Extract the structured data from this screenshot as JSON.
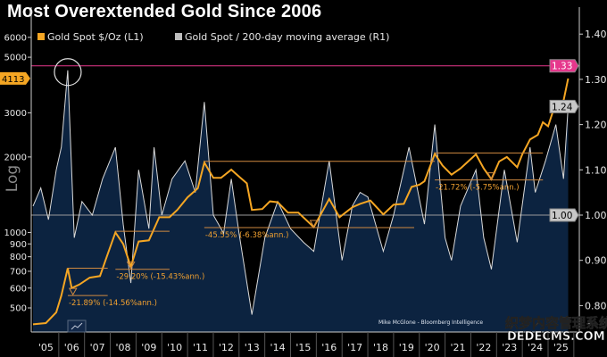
{
  "title": "Most Overextended Gold Since 2006",
  "source": "Mike McGlone - Bloomberg Intelligence",
  "watermark": [
    "织梦内容管理系统",
    "DEDECMS.COM"
  ],
  "chart_data": {
    "type": "line",
    "title": "Most Overextended Gold Since 2006",
    "legend_position": "top-left",
    "x_ticks": [
      "'05",
      "'06",
      "'07",
      "'08",
      "'09",
      "'10",
      "'11",
      "'12",
      "'13",
      "'14",
      "'15",
      "'16",
      "'17",
      "'18",
      "'19",
      "'20",
      "'21",
      "'22",
      "'23",
      "'24",
      "'25"
    ],
    "left_axis": {
      "label": "Log",
      "scale": "log",
      "range": [
        400,
        6500
      ],
      "ticks": [
        500,
        600,
        700,
        800,
        900,
        1000,
        2000,
        3000,
        5000,
        6000
      ],
      "last_value_label": "4113",
      "color": "#f5a623"
    },
    "right_axis": {
      "scale": "linear",
      "range": [
        0.745,
        1.43
      ],
      "ticks": [
        "0.80",
        "0.90",
        "1.00",
        "1.10",
        "1.20",
        "1.30",
        "1.40"
      ],
      "markers": [
        {
          "label": "1.33",
          "color": "#e6378c"
        },
        {
          "label": "1.24",
          "color": "#bbbbbb"
        },
        {
          "label": "1.00",
          "color": "#bbbbbb"
        }
      ]
    },
    "reference_lines": [
      {
        "axis": "right",
        "value": 1.33,
        "color": "#e6378c"
      },
      {
        "axis": "right",
        "value": 1.0,
        "color": "#9a9a9a"
      }
    ],
    "series": [
      {
        "name": "Gold Spot $/Oz (L1)",
        "axis": "left",
        "color": "#f5a623",
        "x": [
          2005.0,
          2005.5,
          2005.9,
          2006.1,
          2006.35,
          2006.5,
          2006.8,
          2007.2,
          2007.6,
          2007.9,
          2008.2,
          2008.5,
          2008.8,
          2009.1,
          2009.5,
          2009.9,
          2010.3,
          2010.6,
          2011.0,
          2011.4,
          2011.65,
          2012.0,
          2012.3,
          2012.7,
          2013.0,
          2013.3,
          2013.5,
          2013.9,
          2014.2,
          2014.5,
          2014.9,
          2015.3,
          2015.9,
          2016.5,
          2016.9,
          2017.4,
          2017.7,
          2018.1,
          2018.6,
          2019.0,
          2019.4,
          2019.7,
          2020.0,
          2020.2,
          2020.6,
          2020.9,
          2021.25,
          2021.6,
          2022.2,
          2022.5,
          2022.8,
          2023.1,
          2023.4,
          2023.8,
          2024.0,
          2024.3,
          2024.6,
          2024.8,
          2025.0,
          2025.3,
          2025.6,
          2025.78
        ],
        "y": [
          430,
          435,
          480,
          560,
          720,
          600,
          620,
          660,
          670,
          820,
          1000,
          900,
          730,
          920,
          930,
          1150,
          1150,
          1230,
          1380,
          1500,
          1900,
          1650,
          1650,
          1780,
          1670,
          1570,
          1230,
          1240,
          1330,
          1320,
          1200,
          1200,
          1050,
          1360,
          1150,
          1260,
          1300,
          1340,
          1180,
          1290,
          1300,
          1520,
          1550,
          1600,
          2060,
          1850,
          1700,
          1800,
          2050,
          1800,
          1630,
          1920,
          2000,
          1820,
          2050,
          2350,
          2450,
          2750,
          2650,
          3300,
          3350,
          4113
        ]
      },
      {
        "name": "Gold Spot / 200-day moving average (R1)",
        "axis": "right",
        "color": "#d9d9d9",
        "x": [
          2005.0,
          2005.3,
          2005.6,
          2005.9,
          2006.1,
          2006.35,
          2006.6,
          2006.9,
          2007.3,
          2007.7,
          2008.2,
          2008.5,
          2008.8,
          2009.1,
          2009.5,
          2009.7,
          2010.0,
          2010.4,
          2010.9,
          2011.3,
          2011.65,
          2012.0,
          2012.4,
          2012.7,
          2013.0,
          2013.5,
          2014.0,
          2014.5,
          2015.0,
          2015.5,
          2015.9,
          2016.5,
          2017.0,
          2017.4,
          2017.7,
          2018.0,
          2018.6,
          2019.0,
          2019.6,
          2020.2,
          2020.6,
          2021.0,
          2021.25,
          2021.6,
          2022.2,
          2022.5,
          2022.8,
          2023.3,
          2023.8,
          2024.3,
          2024.5,
          2024.9,
          2025.3,
          2025.6,
          2025.78
        ],
        "y": [
          1.02,
          1.06,
          0.99,
          1.1,
          1.15,
          1.32,
          0.95,
          1.03,
          1.0,
          1.08,
          1.15,
          0.98,
          0.85,
          1.1,
          0.97,
          1.15,
          1.0,
          1.08,
          1.12,
          1.05,
          1.25,
          1.0,
          0.96,
          1.08,
          0.96,
          0.78,
          0.95,
          1.03,
          0.97,
          0.94,
          0.92,
          1.12,
          0.9,
          1.02,
          1.05,
          1.04,
          0.92,
          1.0,
          1.15,
          0.98,
          1.2,
          0.95,
          0.9,
          1.02,
          1.1,
          0.95,
          0.88,
          1.1,
          0.94,
          1.15,
          1.05,
          1.12,
          1.2,
          1.08,
          1.24
        ]
      }
    ],
    "drawdowns": [
      {
        "start": 2006.35,
        "end": 2007.9,
        "peak": 720,
        "trough_x": 2006.55,
        "trough": 560,
        "label": "-21.89% (-14.56%ann.)"
      },
      {
        "start": 2008.2,
        "end": 2010.3,
        "peak": 1011,
        "trough_x": 2008.8,
        "trough": 713,
        "label": "-29.20% (-15.43%ann.)"
      },
      {
        "start": 2011.65,
        "end": 2020.6,
        "trough_end": 2019.8,
        "peak": 1921,
        "trough_x": 2015.9,
        "trough": 1046,
        "label": "-45.55% (-6.38%ann.)"
      },
      {
        "start": 2020.6,
        "end": 2024.8,
        "peak": 2075,
        "trough_x": 2022.8,
        "trough": 1620,
        "label": "-21.72% (-5.75%ann.)"
      }
    ]
  }
}
